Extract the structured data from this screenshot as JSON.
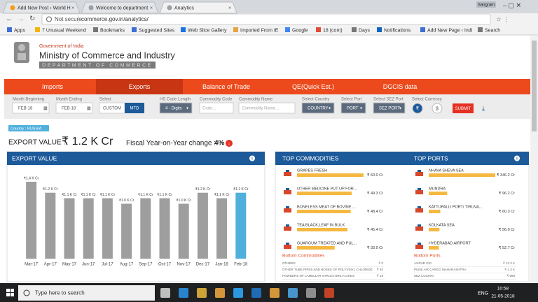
{
  "browser": {
    "tabs": [
      "Add New Post ‹ World H",
      "Welcome to department",
      "Analytics"
    ],
    "user": "Sangram",
    "security": "Not secure",
    "url": "commerce.gov.in/analytics/",
    "bookmarks": [
      "Apps",
      "7 Unusual Weekend",
      "Bookmarks",
      "Suggested Sites",
      "Web Slice Gallery",
      "Imported From IE",
      "Google",
      "18 (com)",
      "Days",
      "Notifications",
      "Add New Page ‹ Indi",
      "Search"
    ]
  },
  "header": {
    "government": "Government of India",
    "ministry": "Ministry of Commerce and Industry",
    "department": "DEPARTMENT OF COMMERCE"
  },
  "nav": [
    "Imports",
    "Exports",
    "Balance of Trade",
    "QE(Quick Est.)",
    "DGCIS data"
  ],
  "filters": {
    "month_beginning": {
      "label": "Month Beginning",
      "value": "FEB-18"
    },
    "month_ending": {
      "label": "Month Ending",
      "value": "FEB-18"
    },
    "select": {
      "label": "Select",
      "options": [
        "CUSTOM",
        "MTD"
      ]
    },
    "hs_code": {
      "label": "HS Code Length",
      "value": "4 - Digits"
    },
    "commodity_code": {
      "label": "Commodity Code",
      "placeholder": "Code..."
    },
    "commodity_name": {
      "label": "Commodity Name",
      "placeholder": "Commodity Name..."
    },
    "country": {
      "label": "Select Country",
      "value": "COUNTRY"
    },
    "port": {
      "label": "Select Port",
      "value": "PORT"
    },
    "sez_port": {
      "label": "Select SEZ Port",
      "value": "SEZ PORT"
    },
    "currency": {
      "label": "Select Currency",
      "options": [
        "₹",
        "$"
      ]
    },
    "submit": "SUBMIT"
  },
  "summary": {
    "country": "Country : RUSSIA",
    "export_label": "EXPORT VALUE :",
    "export_value": "₹ 1.2 K Cr",
    "change_label": "Fiscal Year-on-Year change :",
    "change": "4%"
  },
  "chart_data": [
    {
      "type": "bar",
      "title": "EXPORT VALUE",
      "categories": [
        "Mar-17",
        "Apr-17",
        "May-17",
        "Jun-17",
        "Jul-17",
        "Aug-17",
        "Sep-17",
        "Oct-17",
        "Nov-17",
        "Dec-17",
        "Jan-18",
        "Feb-18"
      ],
      "values": [
        1.4,
        1.2,
        1.1,
        1.1,
        1.1,
        1.0,
        1.1,
        1.1,
        1.0,
        1.2,
        1.1,
        1.2
      ],
      "value_labels": [
        "₹1.4 K Cr",
        "₹1.2 K Cr",
        "₹1.1 K Cr",
        "₹1.1 K Cr",
        "₹1.1 K Cr",
        "₹1.0 K Cr",
        "₹1.1 K Cr",
        "₹1.1 K Cr",
        "₹1.0 K Cr",
        "₹1.2 K Cr",
        "₹1.1 K Cr",
        "₹1.2 K Cr"
      ],
      "colors": [
        "#9e9e9e",
        "#9e9e9e",
        "#9e9e9e",
        "#9e9e9e",
        "#9e9e9e",
        "#9e9e9e",
        "#9e9e9e",
        "#9e9e9e",
        "#9e9e9e",
        "#9e9e9e",
        "#9e9e9e",
        "#4fb0dc"
      ]
    },
    {
      "type": "hbar",
      "title": "TOP COMMODITIES",
      "categories": [
        "GRAPES FRESH",
        "OTHER MEDCINE PUT UP FOR...",
        "BONELESS MEAT OF BOVINE ...",
        "TEA BLACK,LEAF IN BULK",
        "GUARGUM TREATED AND PUL..."
      ],
      "values": [
        60.0,
        49.3,
        48.4,
        45.4,
        33.9
      ],
      "value_labels": [
        "₹ 60.0 Cr",
        "₹ 49.3 Cr",
        "₹ 48.4 Cr",
        "₹ 45.4 Cr",
        "₹ 33.9 Cr"
      ],
      "color": "#f5b941"
    },
    {
      "type": "hbar",
      "title": "TOP PORTS",
      "categories": [
        "NHAVA SHEVA SEA",
        "MUNDRA",
        "KATTUPALLI PORT/ TIRUVA...",
        "KOLKATA SEA",
        "HYDERABAD AIRPORT"
      ],
      "values": [
        346.2,
        96.2,
        60.3,
        56.0,
        52.7
      ],
      "value_labels": [
        "₹ 346.2 Cr",
        "₹ 96.2 Cr",
        "₹ 60.3 Cr",
        "₹ 56.0 Cr",
        "₹ 52.7 Cr"
      ],
      "color": "#f5b941"
    }
  ],
  "bottom_commodities": {
    "title": "Bottom Commodities",
    "rows": [
      [
        "OTHERS",
        "₹ 0"
      ],
      [
        "OTHER TUBE PIPES AND HOSES OF POLYVINYL CHLORIDE",
        "₹ 40"
      ],
      [
        "POWDERS OF LAMELLAR STRUCTURE,FLAKES",
        "₹ 19"
      ]
    ]
  },
  "bottom_ports": {
    "title": "Bottom Ports",
    "rows": [
      [
        "JAIPUR ICD",
        "₹ 12.3 K"
      ],
      [
        "PUNE AIR CARGO MAHARASHTRA",
        "₹ 1.3 K"
      ],
      [
        "SEZ COCHIN",
        "₹ 669"
      ]
    ]
  },
  "taskbar": {
    "search": "Type here to search",
    "language": "ENG",
    "time": "10:58",
    "date": "21-05-2018"
  }
}
